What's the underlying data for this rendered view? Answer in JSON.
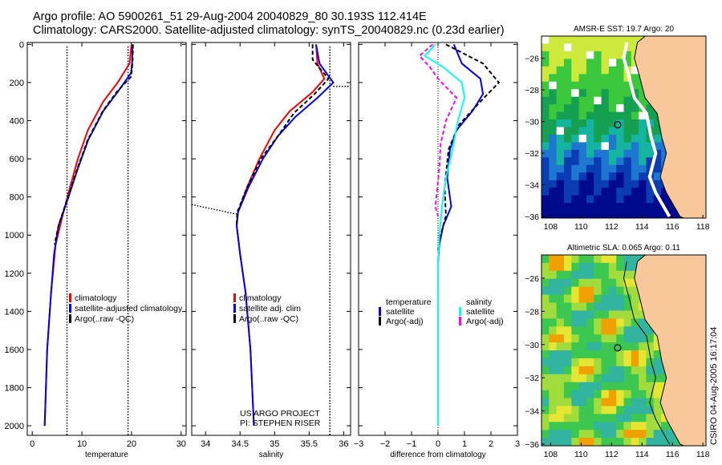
{
  "title_line1": "Argo profile: AO 5900261_51 29-Aug-2004 20040829_80 30.193S 112.414E",
  "title_line2": "Climatology: CARS2000. Satellite-adjusted climatology: synTS_20040829.nc (0.23d earlier)",
  "credit": "CSIRO 04-Aug-2005 16:17:04",
  "colors": {
    "climatology": "#ff0000",
    "satellite": "#0000ff",
    "argo": "#000000",
    "sal_satellite": "#00ffff",
    "sal_argo": "#ff00ff",
    "land": "#f8c89a"
  },
  "chart_data": [
    {
      "type": "line",
      "xlabel": "temperature",
      "ylabel": "",
      "xlim": [
        -1,
        31
      ],
      "ylim": [
        2050,
        -10
      ],
      "xticks": [
        0,
        10,
        20,
        30
      ],
      "yticks": [
        0,
        200,
        400,
        600,
        800,
        1000,
        1200,
        1400,
        1600,
        1800,
        2000
      ],
      "legend": [
        "climatology",
        "satellite-adjusted climatology",
        "Argo(..raw -QC)"
      ],
      "ref_lines": [
        7,
        19.3
      ],
      "series": [
        {
          "name": "climatology",
          "color": "#ff0000",
          "dash": "",
          "depth": [
            0,
            100,
            200,
            300,
            450,
            600,
            750,
            900,
            1050,
            1300,
            1600,
            2000
          ],
          "values": [
            20,
            19.6,
            17.2,
            14.3,
            11.2,
            9.2,
            7.6,
            6.1,
            4.7,
            3.8,
            3.0,
            2.5
          ]
        },
        {
          "name": "satellite-adjusted climatology",
          "color": "#0000ff",
          "dash": "",
          "depth": [
            0,
            100,
            150,
            250,
            350,
            500,
            650,
            800,
            950,
            1100,
            1300,
            1600,
            2000
          ],
          "values": [
            20.2,
            20.1,
            19.9,
            17.2,
            14.3,
            11.3,
            9.2,
            7.3,
            5.3,
            4.4,
            3.8,
            3.0,
            2.5
          ]
        },
        {
          "name": "Argo(..raw -QC)",
          "color": "#000000",
          "dash": "5,3",
          "depth": [
            0,
            100,
            170,
            250,
            350,
            500,
            650,
            800,
            950,
            1050
          ],
          "values": [
            20.3,
            20.2,
            19.9,
            17.0,
            14.2,
            11.2,
            9.1,
            7.2,
            5.3,
            4.5
          ]
        }
      ]
    },
    {
      "type": "line",
      "xlabel": "salinity",
      "ylabel": "",
      "xlim": [
        33.8,
        36.1
      ],
      "ylim": [
        2050,
        -10
      ],
      "xticks": [
        34,
        34.5,
        35,
        35.5,
        36
      ],
      "yticks": [],
      "legend": [
        "climatology",
        "satellite adj. clim",
        "Argo(..raw -QC)"
      ],
      "annotation": [
        "US ARGO PROJECT",
        "PI: STEPHEN RISER"
      ],
      "ref_lines": [
        35.8
      ],
      "series": [
        {
          "name": "climatology",
          "color": "#ff0000",
          "dash": "",
          "depth": [
            0,
            100,
            180,
            250,
            350,
            450,
            600,
            750,
            880,
            950,
            1100,
            1300,
            1600,
            2000
          ],
          "values": [
            35.6,
            35.62,
            35.72,
            35.55,
            35.22,
            35.0,
            34.78,
            34.6,
            34.47,
            34.45,
            34.5,
            34.58,
            34.65,
            34.7
          ]
        },
        {
          "name": "satellite adj. clim",
          "color": "#0000ff",
          "dash": "",
          "depth": [
            0,
            100,
            200,
            280,
            380,
            480,
            600,
            750,
            880,
            950,
            1100,
            1300,
            1600,
            2000
          ],
          "values": [
            35.6,
            35.65,
            35.85,
            35.62,
            35.3,
            35.05,
            34.83,
            34.62,
            34.47,
            34.45,
            34.5,
            34.58,
            34.65,
            34.7
          ]
        },
        {
          "name": "Argo(..raw -QC)",
          "color": "#000000",
          "dash": "5,3",
          "depth": [
            0,
            80,
            180,
            260,
            360,
            480,
            600,
            750,
            880,
            950
          ],
          "values": [
            35.55,
            35.55,
            35.78,
            35.58,
            35.28,
            35.05,
            34.8,
            34.6,
            34.46,
            34.45
          ]
        }
      ]
    },
    {
      "type": "line",
      "xlabel": "difference from climatology",
      "ylabel": "",
      "xlim": [
        -3,
        3
      ],
      "ylim": [
        2050,
        -10
      ],
      "xticks": [
        -3,
        -2,
        -1,
        0,
        1,
        2,
        3
      ],
      "yticks": [],
      "legend_left": [
        "temperature",
        "satellite",
        "Argo(-adj)"
      ],
      "legend_right": [
        "salinity",
        "satellite",
        "Argo(-adj)"
      ],
      "series": [
        {
          "name": "temperature satellite",
          "color": "#0000ff",
          "dash": "",
          "depth": [
            0,
            100,
            180,
            260,
            350,
            450,
            550,
            700,
            850,
            950,
            1050,
            1150,
            2000
          ],
          "values": [
            0.6,
            0.9,
            1.6,
            1.7,
            1.3,
            0.7,
            0.45,
            0.35,
            0.5,
            0.2,
            0.05,
            0,
            0
          ]
        },
        {
          "name": "temperature Argo(-adj)",
          "color": "#000000",
          "dash": "5,3",
          "depth": [
            0,
            100,
            200,
            300,
            420,
            550,
            750,
            900,
            1000,
            1080
          ],
          "values": [
            0.3,
            1.7,
            2.3,
            1.6,
            0.8,
            0.4,
            0.25,
            0.3,
            0.1,
            0
          ]
        },
        {
          "name": "salinity satellite",
          "color": "#00ffff",
          "dash": "",
          "depth": [
            0,
            60,
            120,
            200,
            280,
            400,
            550,
            700,
            850,
            1000,
            1150,
            2000
          ],
          "values": [
            -0.1,
            -0.5,
            0.2,
            0.9,
            1.0,
            0.75,
            0.55,
            0.3,
            0.15,
            0.05,
            0,
            0
          ]
        },
        {
          "name": "salinity Argo(-adj)",
          "color": "#ff00ff",
          "dash": "5,3",
          "depth": [
            0,
            60,
            120,
            180,
            280,
            400,
            520,
            650,
            850,
            900
          ],
          "values": [
            -0.2,
            -0.7,
            -0.3,
            0.0,
            0.7,
            0.3,
            0.1,
            0.05,
            -0.1,
            0
          ]
        }
      ]
    },
    {
      "type": "heatmap",
      "title": "AMSR-E SST: 19.7 Argo: 20",
      "xlim": [
        107.4,
        118.2
      ],
      "ylim": [
        -36.1,
        -24.6
      ],
      "xticks": [
        108,
        110,
        112,
        114,
        116,
        118
      ],
      "yticks": [
        -26,
        -28,
        -30,
        -32,
        -34,
        -36
      ],
      "marker": [
        112.4,
        -30.2
      ]
    },
    {
      "type": "heatmap",
      "title": "Altimetric SLA: 0.065 Argo: 0.11",
      "xlim": [
        107.4,
        118.2
      ],
      "ylim": [
        -36.1,
        -24.6
      ],
      "xticks": [
        108,
        110,
        112,
        114,
        116,
        118
      ],
      "yticks": [
        -26,
        -28,
        -30,
        -32,
        -34,
        -36
      ],
      "marker": [
        112.4,
        -30.2
      ]
    }
  ]
}
